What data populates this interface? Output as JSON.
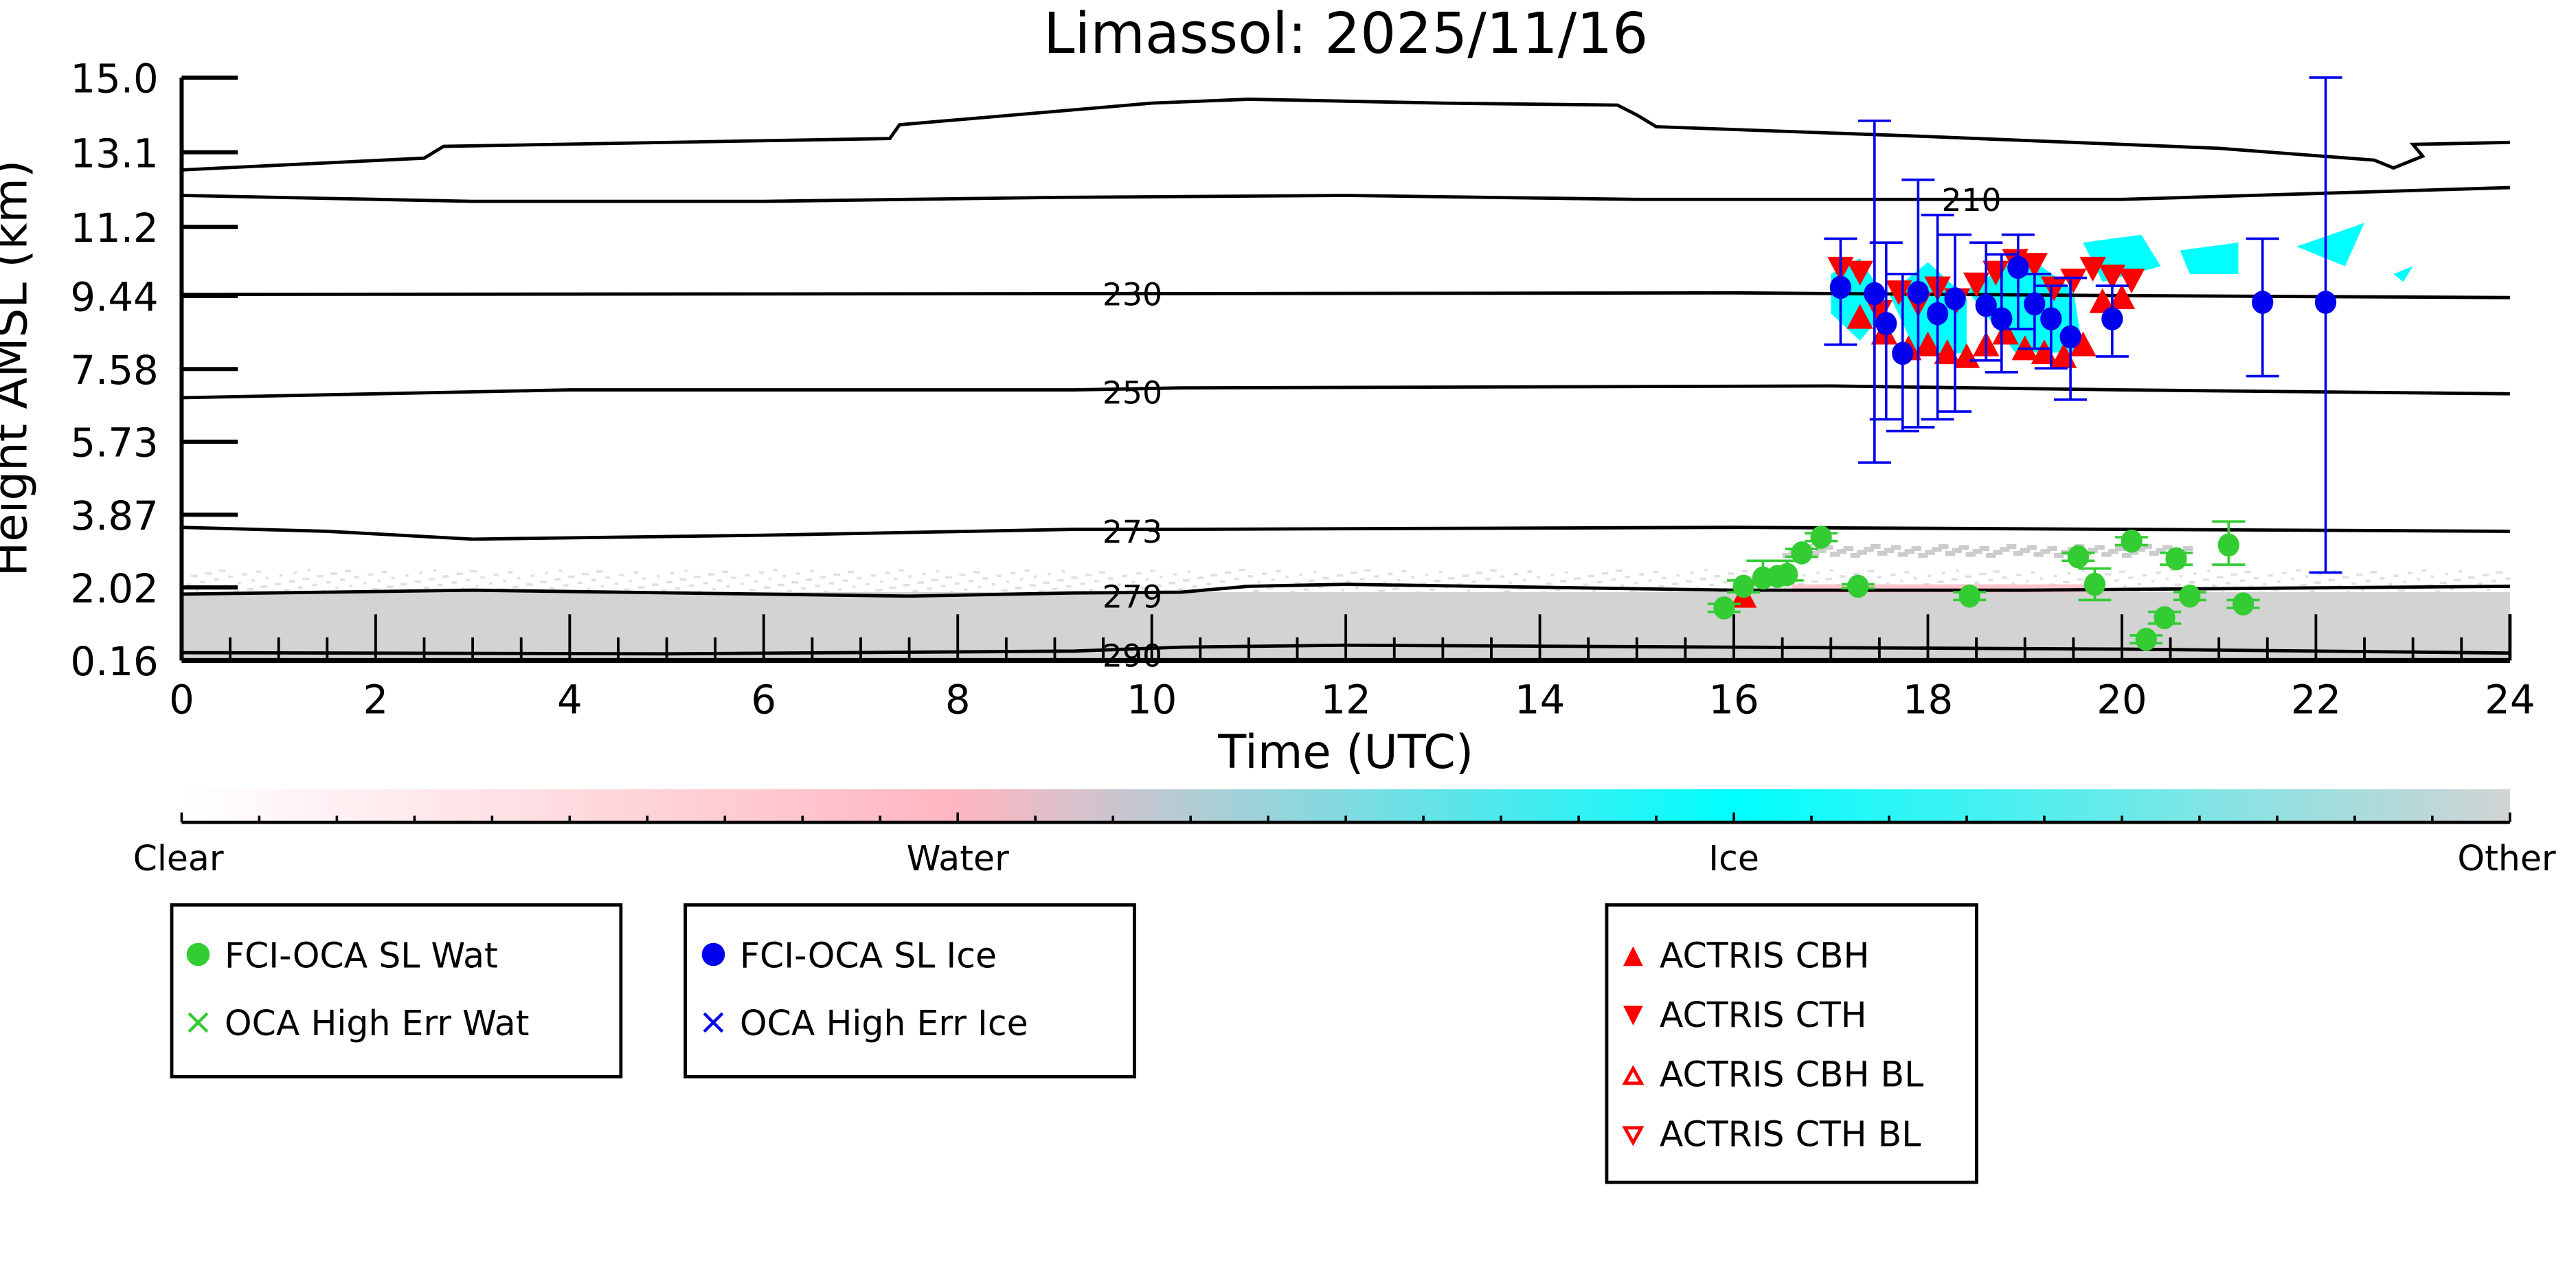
{
  "chart_data": {
    "type": "scatter",
    "title": "Limassol: 2025/11/16",
    "xlabel": "Time (UTC)",
    "ylabel": "Height AMSL (km)",
    "xlim": [
      0,
      24
    ],
    "ylim": [
      0.16,
      15.0
    ],
    "x_ticks": [
      "0",
      "2",
      "4",
      "6",
      "8",
      "10",
      "12",
      "14",
      "16",
      "18",
      "20",
      "22",
      "24"
    ],
    "y_ticks": [
      "0.16",
      "2.02",
      "3.87",
      "5.73",
      "7.58",
      "9.44",
      "11.2",
      "13.1",
      "15.0"
    ],
    "y_tick_values": [
      0.16,
      2.02,
      3.87,
      5.73,
      7.58,
      9.44,
      11.2,
      13.1,
      15.0
    ],
    "colors": {
      "water": "#33cc33",
      "ice": "#0000ee",
      "actris": "#ff0000",
      "cyan": "#00ffff",
      "gray": "#d3d3d3",
      "pink": "#ffb6c1"
    },
    "colorbar": {
      "labels": [
        "Clear",
        "Water",
        "Ice",
        "Other"
      ]
    },
    "contours": [
      {
        "label": "210",
        "label_at": [
          18.45,
          11.9
        ],
        "points": [
          [
            0,
            12.0
          ],
          [
            3,
            11.85
          ],
          [
            6,
            11.85
          ],
          [
            9,
            11.95
          ],
          [
            12,
            12.0
          ],
          [
            15,
            11.9
          ],
          [
            18,
            11.9
          ],
          [
            19,
            11.9
          ],
          [
            20,
            11.9
          ],
          [
            22,
            12.05
          ],
          [
            24,
            12.2
          ]
        ]
      },
      {
        "label": "",
        "label_at": null,
        "points": [
          [
            0,
            12.65
          ],
          [
            2.5,
            12.95
          ],
          [
            2.7,
            13.25
          ],
          [
            7.3,
            13.45
          ],
          [
            7.4,
            13.8
          ],
          [
            10,
            14.35
          ],
          [
            11,
            14.45
          ],
          [
            13,
            14.35
          ],
          [
            14.8,
            14.3
          ],
          [
            15.0,
            14.05
          ],
          [
            15.2,
            13.75
          ],
          [
            18,
            13.5
          ],
          [
            21,
            13.2
          ],
          [
            22.6,
            12.9
          ],
          [
            22.8,
            12.7
          ],
          [
            23.1,
            13.0
          ],
          [
            23,
            13.3
          ],
          [
            24,
            13.35
          ]
        ]
      },
      {
        "label": "230",
        "label_at": [
          9.8,
          9.5
        ],
        "points": [
          [
            0,
            9.48
          ],
          [
            9.2,
            9.5
          ],
          [
            10.3,
            9.5
          ],
          [
            16,
            9.52
          ],
          [
            20,
            9.45
          ],
          [
            24,
            9.4
          ]
        ]
      },
      {
        "label": "250",
        "label_at": [
          9.8,
          7.0
        ],
        "points": [
          [
            0,
            6.85
          ],
          [
            4,
            7.05
          ],
          [
            9.2,
            7.05
          ],
          [
            10.3,
            7.1
          ],
          [
            17,
            7.15
          ],
          [
            20,
            7.05
          ],
          [
            24,
            6.95
          ]
        ]
      },
      {
        "label": "273",
        "label_at": [
          9.8,
          3.45
        ],
        "points": [
          [
            0,
            3.55
          ],
          [
            1.5,
            3.45
          ],
          [
            3,
            3.25
          ],
          [
            6,
            3.35
          ],
          [
            9.2,
            3.5
          ],
          [
            10.3,
            3.5
          ],
          [
            16,
            3.55
          ],
          [
            20,
            3.5
          ],
          [
            24,
            3.45
          ]
        ]
      },
      {
        "label": "279",
        "label_at": [
          9.8,
          1.8
        ],
        "points": [
          [
            0,
            1.85
          ],
          [
            3,
            1.95
          ],
          [
            6,
            1.85
          ],
          [
            7.5,
            1.8
          ],
          [
            9.2,
            1.88
          ],
          [
            10.3,
            1.9
          ],
          [
            11,
            2.05
          ],
          [
            12,
            2.1
          ],
          [
            16,
            1.95
          ],
          [
            19,
            1.95
          ],
          [
            24,
            2.05
          ]
        ]
      },
      {
        "label": "290",
        "label_at": [
          9.8,
          0.3
        ],
        "points": [
          [
            0,
            0.36
          ],
          [
            5,
            0.33
          ],
          [
            9.2,
            0.4
          ],
          [
            10.3,
            0.5
          ],
          [
            12,
            0.55
          ],
          [
            16,
            0.5
          ],
          [
            20,
            0.45
          ],
          [
            24,
            0.35
          ]
        ]
      }
    ],
    "cloud_mask": {
      "other_base_top_km": 1.9,
      "cyan_patches": [
        [
          [
            17.0,
            10.0
          ],
          [
            17.3,
            10.4
          ],
          [
            17.6,
            9.2
          ],
          [
            17.3,
            8.3
          ],
          [
            17.0,
            9.0
          ]
        ],
        [
          [
            17.6,
            9.5
          ],
          [
            18.0,
            10.3
          ],
          [
            18.4,
            9.4
          ],
          [
            18.4,
            8.0
          ],
          [
            17.9,
            7.9
          ]
        ],
        [
          [
            18.4,
            9.6
          ],
          [
            19.0,
            10.5
          ],
          [
            19.5,
            9.6
          ],
          [
            19.6,
            8.0
          ],
          [
            18.9,
            8.0
          ]
        ],
        [
          [
            19.6,
            10.8
          ],
          [
            20.2,
            11.0
          ],
          [
            20.4,
            10.2
          ],
          [
            19.8,
            9.8
          ]
        ],
        [
          [
            20.6,
            10.6
          ],
          [
            21.2,
            10.8
          ],
          [
            21.2,
            10.0
          ],
          [
            20.7,
            10.0
          ]
        ],
        [
          [
            21.8,
            10.7
          ],
          [
            22.5,
            11.3
          ],
          [
            22.3,
            10.2
          ]
        ],
        [
          [
            22.8,
            10.0
          ],
          [
            23.0,
            10.2
          ],
          [
            22.9,
            9.8
          ]
        ]
      ]
    },
    "legend": {
      "water": [
        "FCI-OCA SL Wat",
        "OCA High Err Wat"
      ],
      "ice": [
        "FCI-OCA SL Ice",
        "OCA High Err Ice"
      ],
      "actris": [
        "ACTRIS CBH",
        "ACTRIS CTH",
        "ACTRIS CBH BL",
        "ACTRIS CTH BL"
      ]
    },
    "series": [
      {
        "name": "FCI-OCA SL Ice",
        "x": [
          17.1,
          17.45,
          17.57,
          17.74,
          17.9,
          18.1,
          18.28,
          18.6,
          18.76,
          18.93,
          19.1,
          19.27,
          19.47,
          19.9,
          21.45,
          22.1
        ],
        "y": [
          9.66,
          9.5,
          8.74,
          7.98,
          9.53,
          8.99,
          9.37,
          9.2,
          8.86,
          10.17,
          9.24,
          8.86,
          8.4,
          8.86,
          9.28,
          9.28
        ],
        "err_lo": [
          8.2,
          5.2,
          6.3,
          6.0,
          6.1,
          6.3,
          6.5,
          7.8,
          7.5,
          8.6,
          8.1,
          7.6,
          6.8,
          7.9,
          7.4,
          2.4
        ],
        "err_hi": [
          10.9,
          13.9,
          10.8,
          10.0,
          12.4,
          11.5,
          11.0,
          10.8,
          10.5,
          11.0,
          10.0,
          9.7,
          9.9,
          9.7,
          10.9,
          15.0
        ]
      },
      {
        "name": "FCI-OCA SL Wat",
        "x": [
          15.9,
          16.1,
          16.3,
          16.45,
          16.55,
          16.7,
          16.9,
          17.28,
          18.43,
          19.55,
          19.72,
          20.1,
          20.25,
          20.44,
          20.56,
          20.7,
          21.1,
          21.25
        ],
        "y": [
          1.5,
          2.05,
          2.26,
          2.3,
          2.35,
          2.9,
          3.3,
          2.05,
          1.8,
          2.8,
          2.1,
          3.2,
          0.7,
          1.25,
          2.75,
          1.8,
          3.1,
          1.6
        ],
        "err_lo": [
          1.4,
          1.9,
          2.1,
          2.2,
          2.2,
          2.8,
          3.2,
          2.0,
          1.7,
          2.7,
          1.7,
          3.1,
          0.6,
          1.1,
          2.6,
          1.7,
          2.6,
          1.5
        ],
        "err_hi": [
          1.6,
          2.2,
          2.7,
          2.4,
          2.7,
          3.0,
          3.4,
          2.1,
          1.9,
          2.9,
          2.5,
          3.3,
          0.8,
          1.4,
          2.9,
          1.9,
          3.7,
          1.7
        ]
      },
      {
        "name": "ACTRIS CTH",
        "x": [
          17.1,
          17.3,
          17.5,
          17.7,
          17.9,
          18.1,
          18.3,
          18.5,
          18.7,
          18.9,
          19.1,
          19.3,
          19.5,
          19.7,
          19.9,
          20.1
        ],
        "y": [
          10.1,
          10.0,
          9.0,
          9.5,
          9.2,
          9.6,
          9.3,
          9.7,
          10.0,
          10.3,
          10.2,
          9.6,
          9.8,
          10.1,
          9.9,
          9.8
        ]
      },
      {
        "name": "ACTRIS CBH",
        "x": [
          16.1,
          17.3,
          17.55,
          17.8,
          18.0,
          18.2,
          18.4,
          18.6,
          18.8,
          19.0,
          19.2,
          19.4,
          19.6,
          19.8,
          20.0
        ],
        "y": [
          1.8,
          8.9,
          8.5,
          8.1,
          8.2,
          8.0,
          7.9,
          8.2,
          8.5,
          8.1,
          8.0,
          7.9,
          8.2,
          9.3,
          9.4
        ]
      }
    ]
  }
}
